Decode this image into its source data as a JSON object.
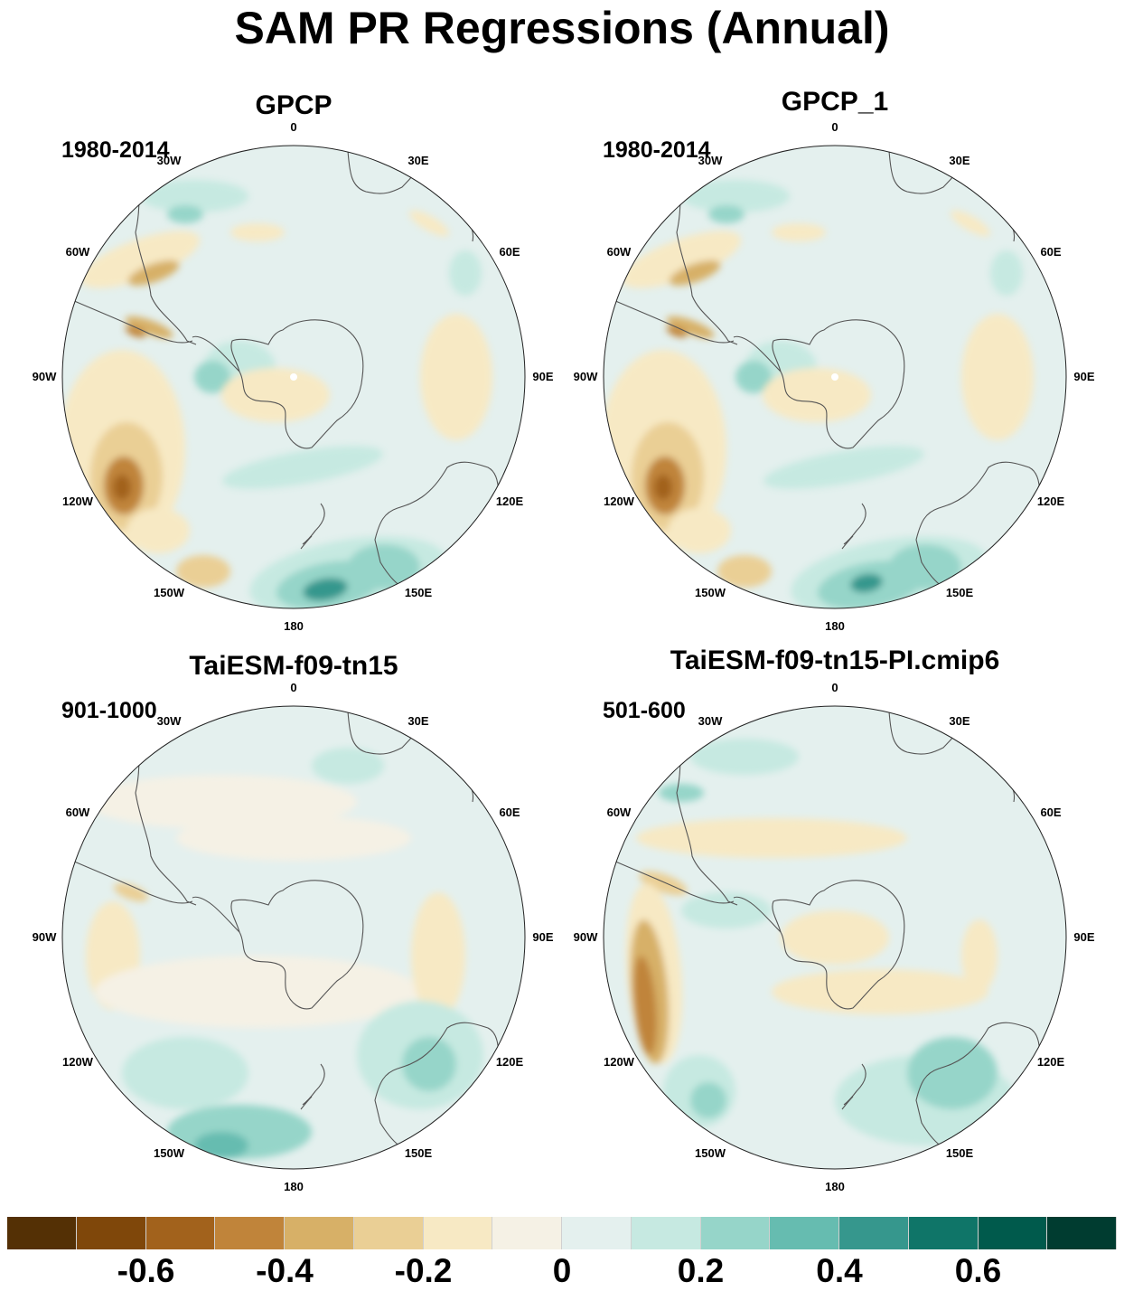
{
  "title": "SAM PR Regressions (Annual)",
  "panels": [
    {
      "title": "GPCP",
      "period": "1980-2014"
    },
    {
      "title": "GPCP_1",
      "period": "1980-2014"
    },
    {
      "title": "TaiESM-f09-tn15",
      "period": "901-1000"
    },
    {
      "title": "TaiESM-f09-tn15-PI.cmip6",
      "period": "501-600"
    }
  ],
  "longitude_labels": [
    "0",
    "30E",
    "60E",
    "90E",
    "120E",
    "150E",
    "180",
    "150W",
    "120W",
    "90W",
    "60W",
    "30W"
  ],
  "colorbar": {
    "colors": [
      "#543005",
      "#7f470a",
      "#a2621c",
      "#c0843a",
      "#d7b067",
      "#eacf95",
      "#f7e9c4",
      "#f5f1e5",
      "#e4f0ee",
      "#c6e9e1",
      "#96d5c9",
      "#66bcb0",
      "#36978d",
      "#0f7568",
      "#005a4c",
      "#003c30"
    ],
    "labels": [
      "-0.6",
      "-0.4",
      "-0.2",
      "0",
      "0.2",
      "0.4",
      "0.6"
    ],
    "label_box_edges": [
      1,
      3,
      5,
      7,
      9,
      11,
      13
    ]
  }
}
